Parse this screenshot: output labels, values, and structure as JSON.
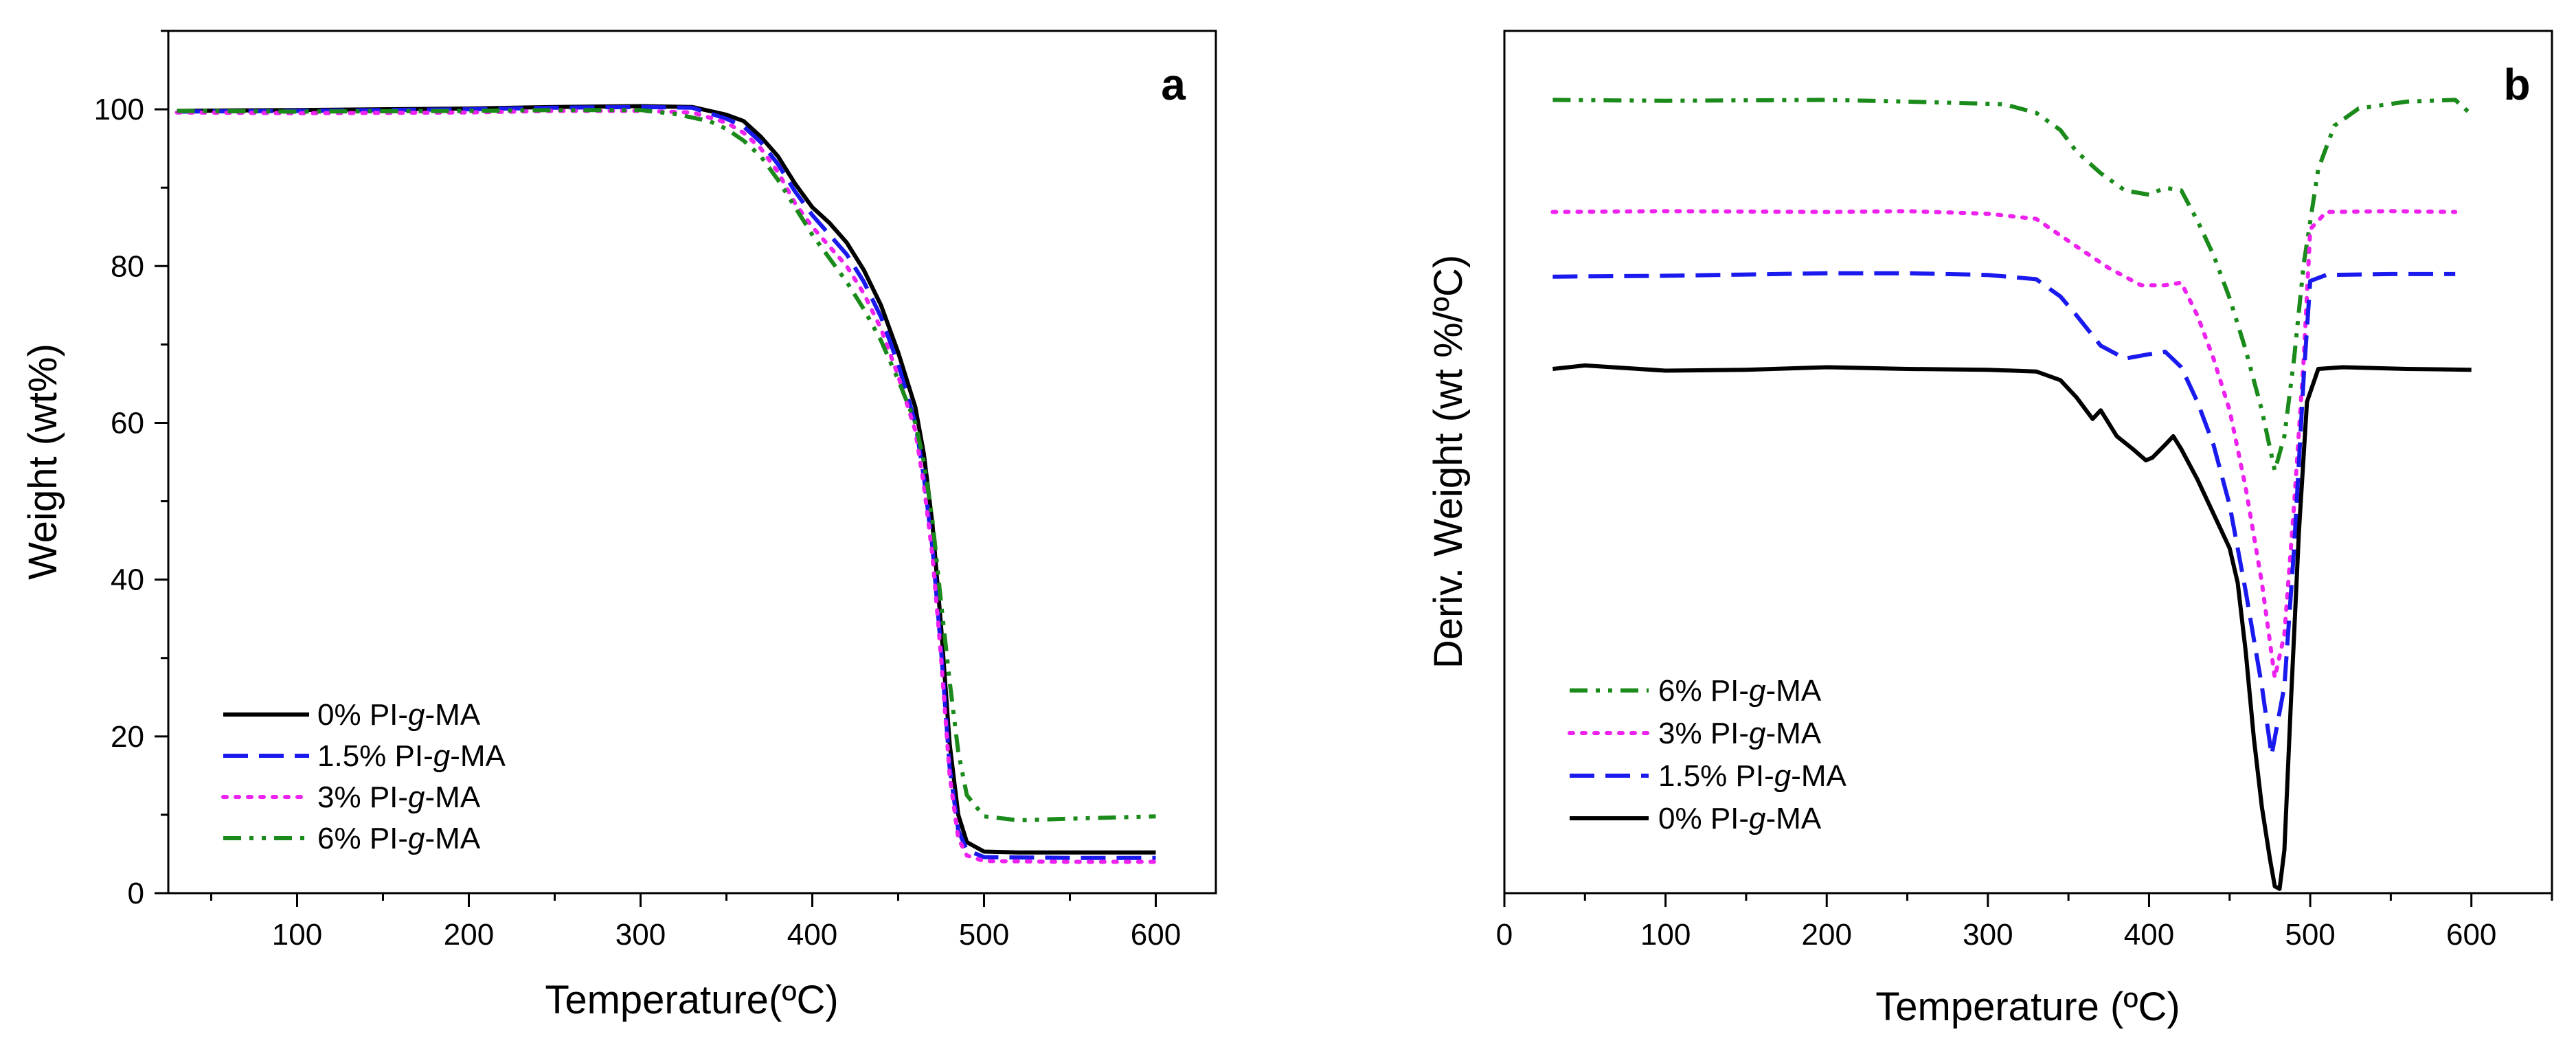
{
  "chart_data": [
    {
      "type": "line",
      "panel_label": "a",
      "xlabel": "Temperature(ºC)",
      "ylabel": "Weight  (wt%)",
      "xlim": [
        25,
        635
      ],
      "ylim": [
        0,
        110
      ],
      "xticks": [
        100,
        200,
        300,
        400,
        500,
        600
      ],
      "yticks": [
        0,
        20,
        40,
        60,
        80,
        100
      ],
      "legend_position": "bottom-left",
      "series": [
        {
          "name": "0% PI-g-MA",
          "label_pre": "0% PI-",
          "label_it": "g",
          "label_post": "-MA",
          "color": "#000000",
          "style": "solid",
          "points": [
            [
              30,
              99.8
            ],
            [
              100,
              99.9
            ],
            [
              200,
              100.1
            ],
            [
              250,
              100.3
            ],
            [
              300,
              100.4
            ],
            [
              330,
              100.3
            ],
            [
              350,
              99.3
            ],
            [
              360,
              98.5
            ],
            [
              370,
              96.5
            ],
            [
              380,
              94
            ],
            [
              390,
              90.5
            ],
            [
              400,
              87.5
            ],
            [
              410,
              85.5
            ],
            [
              420,
              83
            ],
            [
              430,
              79.5
            ],
            [
              440,
              75
            ],
            [
              450,
              69
            ],
            [
              460,
              62
            ],
            [
              465,
              56
            ],
            [
              470,
              47
            ],
            [
              475,
              34
            ],
            [
              480,
              19
            ],
            [
              485,
              10
            ],
            [
              490,
              6.5
            ],
            [
              500,
              5.3
            ],
            [
              520,
              5.2
            ],
            [
              550,
              5.2
            ],
            [
              600,
              5.2
            ]
          ]
        },
        {
          "name": "1.5% PI-g-MA",
          "label_pre": "1.5% PI-",
          "label_it": "g",
          "label_post": "-MA",
          "color": "#1a1aee",
          "style": "dash",
          "points": [
            [
              30,
              99.7
            ],
            [
              100,
              99.8
            ],
            [
              200,
              100
            ],
            [
              250,
              100.2
            ],
            [
              300,
              100.3
            ],
            [
              330,
              100.2
            ],
            [
              350,
              98.8
            ],
            [
              360,
              97.8
            ],
            [
              370,
              95.8
            ],
            [
              380,
              93
            ],
            [
              390,
              89.5
            ],
            [
              400,
              86.5
            ],
            [
              410,
              84
            ],
            [
              420,
              81.5
            ],
            [
              430,
              78
            ],
            [
              440,
              73.5
            ],
            [
              450,
              67.5
            ],
            [
              460,
              60
            ],
            [
              465,
              53
            ],
            [
              470,
              44
            ],
            [
              475,
              31
            ],
            [
              480,
              16
            ],
            [
              485,
              8
            ],
            [
              490,
              5.5
            ],
            [
              500,
              4.6
            ],
            [
              550,
              4.5
            ],
            [
              600,
              4.5
            ]
          ]
        },
        {
          "name": "3% PI-g-MA",
          "label_pre": "3% PI-",
          "label_it": "g",
          "label_post": "-MA",
          "color": "#ee22ee",
          "style": "dot",
          "points": [
            [
              30,
              99.6
            ],
            [
              100,
              99.5
            ],
            [
              200,
              99.6
            ],
            [
              250,
              99.8
            ],
            [
              300,
              99.8
            ],
            [
              330,
              99.6
            ],
            [
              350,
              98.3
            ],
            [
              360,
              97
            ],
            [
              370,
              95
            ],
            [
              380,
              92
            ],
            [
              390,
              88
            ],
            [
              400,
              85
            ],
            [
              410,
              82.5
            ],
            [
              420,
              80
            ],
            [
              430,
              76.5
            ],
            [
              440,
              72
            ],
            [
              450,
              66
            ],
            [
              460,
              59
            ],
            [
              465,
              52
            ],
            [
              470,
              43
            ],
            [
              475,
              30
            ],
            [
              480,
              15
            ],
            [
              485,
              7
            ],
            [
              490,
              4.8
            ],
            [
              500,
              4.1
            ],
            [
              550,
              4
            ],
            [
              600,
              4
            ]
          ]
        },
        {
          "name": "6% PI-g-MA",
          "label_pre": "6% PI-",
          "label_it": "g",
          "label_post": "-MA",
          "color": "#1a8a1a",
          "style": "dashdotdot",
          "points": [
            [
              30,
              99.8
            ],
            [
              100,
              99.7
            ],
            [
              200,
              99.8
            ],
            [
              250,
              99.9
            ],
            [
              300,
              99.9
            ],
            [
              320,
              99.4
            ],
            [
              340,
              98.5
            ],
            [
              350,
              97.5
            ],
            [
              360,
              96
            ],
            [
              370,
              94
            ],
            [
              380,
              91
            ],
            [
              390,
              87.5
            ],
            [
              400,
              84
            ],
            [
              410,
              81
            ],
            [
              420,
              78
            ],
            [
              430,
              74.5
            ],
            [
              440,
              70.5
            ],
            [
              450,
              65.5
            ],
            [
              460,
              60
            ],
            [
              465,
              55
            ],
            [
              470,
              47.5
            ],
            [
              475,
              37
            ],
            [
              480,
              27
            ],
            [
              485,
              18
            ],
            [
              490,
              12.5
            ],
            [
              500,
              9.8
            ],
            [
              520,
              9.3
            ],
            [
              550,
              9.5
            ],
            [
              600,
              9.8
            ]
          ]
        }
      ]
    },
    {
      "type": "line",
      "panel_label": "b",
      "xlabel": "Temperature (ºC)",
      "ylabel": "Deriv. Weight (wt %/ºC)",
      "xlim": [
        0,
        650
      ],
      "ylim": [
        0,
        100
      ],
      "xticks": [
        0,
        100,
        200,
        300,
        400,
        500,
        600
      ],
      "yticks": [],
      "legend_position": "bottom-left",
      "series": [
        {
          "name": "6% PI-g-MA",
          "label_pre": "6% PI-",
          "label_it": "g",
          "label_post": "-MA",
          "color": "#1a8a1a",
          "style": "dashdotdot",
          "points": [
            [
              30,
              92
            ],
            [
              100,
              91.9
            ],
            [
              200,
              92
            ],
            [
              250,
              91.8
            ],
            [
              310,
              91.5
            ],
            [
              330,
              90.5
            ],
            [
              345,
              88.5
            ],
            [
              355,
              86
            ],
            [
              370,
              83.5
            ],
            [
              385,
              81.5
            ],
            [
              400,
              81
            ],
            [
              410,
              81.8
            ],
            [
              420,
              81.5
            ],
            [
              430,
              78
            ],
            [
              440,
              74
            ],
            [
              450,
              69
            ],
            [
              460,
              63
            ],
            [
              470,
              56
            ],
            [
              478,
              49
            ],
            [
              484,
              53
            ],
            [
              490,
              62
            ],
            [
              496,
              73
            ],
            [
              505,
              84
            ],
            [
              515,
              89
            ],
            [
              530,
              91
            ],
            [
              560,
              91.8
            ],
            [
              590,
              92
            ],
            [
              600,
              90.3
            ]
          ]
        },
        {
          "name": "3% PI-g-MA",
          "label_pre": "3% PI-",
          "label_it": "g",
          "label_post": "-MA",
          "color": "#ee22ee",
          "style": "dot",
          "points": [
            [
              30,
              79
            ],
            [
              100,
              79.1
            ],
            [
              200,
              79
            ],
            [
              250,
              79.1
            ],
            [
              300,
              78.8
            ],
            [
              330,
              78.2
            ],
            [
              355,
              75
            ],
            [
              375,
              72.5
            ],
            [
              395,
              70.5
            ],
            [
              410,
              70.5
            ],
            [
              420,
              70.8
            ],
            [
              430,
              67
            ],
            [
              440,
              62
            ],
            [
              450,
              56
            ],
            [
              460,
              47
            ],
            [
              470,
              36
            ],
            [
              478,
              25
            ],
            [
              484,
              30
            ],
            [
              490,
              45
            ],
            [
              496,
              62
            ],
            [
              500,
              77
            ],
            [
              510,
              79
            ],
            [
              550,
              79.1
            ],
            [
              590,
              79
            ]
          ]
        },
        {
          "name": "1.5% PI-g-MA",
          "label_pre": "1.5% PI-",
          "label_it": "g",
          "label_post": "-MA",
          "color": "#1a1aee",
          "style": "dash",
          "points": [
            [
              30,
              71.5
            ],
            [
              100,
              71.6
            ],
            [
              200,
              71.9
            ],
            [
              250,
              71.9
            ],
            [
              300,
              71.7
            ],
            [
              330,
              71.2
            ],
            [
              345,
              69.2
            ],
            [
              355,
              67
            ],
            [
              370,
              63.5
            ],
            [
              385,
              62
            ],
            [
              400,
              62.5
            ],
            [
              410,
              62.8
            ],
            [
              420,
              61
            ],
            [
              430,
              57
            ],
            [
              440,
              52
            ],
            [
              450,
              45
            ],
            [
              460,
              35
            ],
            [
              470,
              24
            ],
            [
              476,
              16
            ],
            [
              484,
              24
            ],
            [
              490,
              40
            ],
            [
              496,
              60
            ],
            [
              500,
              71
            ],
            [
              510,
              71.7
            ],
            [
              550,
              71.8
            ],
            [
              590,
              71.8
            ]
          ]
        },
        {
          "name": "0% PI-g-MA",
          "label_pre": "0% PI-",
          "label_it": "g",
          "label_post": "-MA",
          "color": "#000000",
          "style": "solid",
          "points": [
            [
              30,
              60.8
            ],
            [
              50,
              61.2
            ],
            [
              100,
              60.6
            ],
            [
              150,
              60.7
            ],
            [
              200,
              61
            ],
            [
              250,
              60.8
            ],
            [
              300,
              60.7
            ],
            [
              330,
              60.5
            ],
            [
              345,
              59.5
            ],
            [
              355,
              57.5
            ],
            [
              365,
              55
            ],
            [
              370,
              56
            ],
            [
              380,
              53
            ],
            [
              390,
              51.5
            ],
            [
              398,
              50.2
            ],
            [
              402,
              50.5
            ],
            [
              410,
              52
            ],
            [
              415,
              53
            ],
            [
              420,
              51.5
            ],
            [
              430,
              48
            ],
            [
              440,
              44
            ],
            [
              450,
              40
            ],
            [
              455,
              36
            ],
            [
              460,
              28
            ],
            [
              465,
              18
            ],
            [
              470,
              10
            ],
            [
              475,
              4
            ],
            [
              478,
              0.8
            ],
            [
              481,
              0.5
            ],
            [
              484,
              5
            ],
            [
              488,
              22
            ],
            [
              493,
              42
            ],
            [
              498,
              57
            ],
            [
              505,
              60.8
            ],
            [
              520,
              61
            ],
            [
              560,
              60.8
            ],
            [
              600,
              60.7
            ]
          ]
        }
      ]
    }
  ]
}
